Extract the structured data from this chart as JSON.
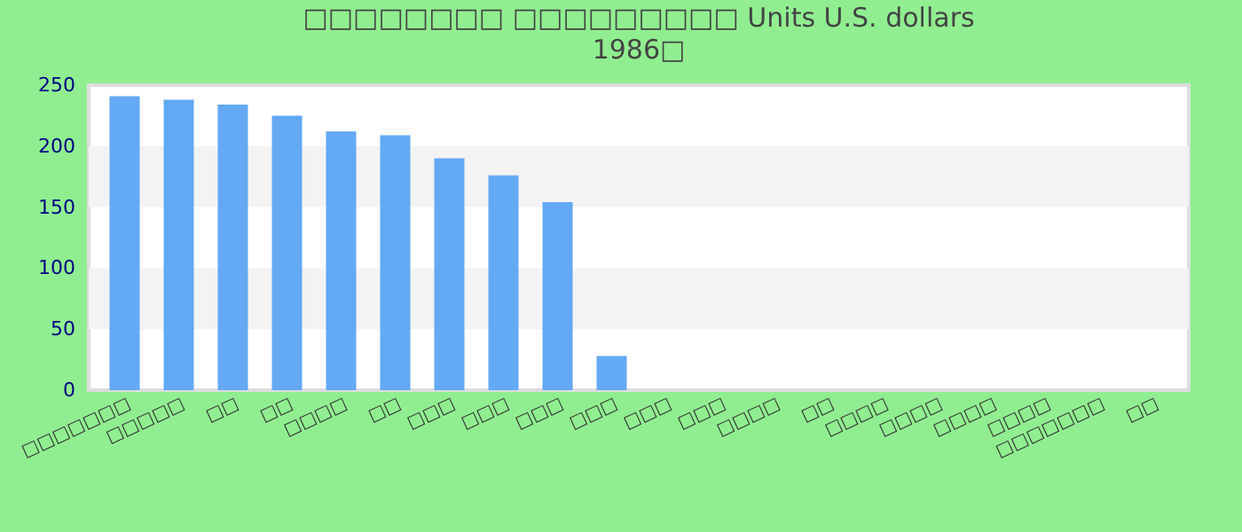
{
  "chart_data": {
    "type": "bar",
    "title": "□□□□□□□□ □□□□□□□□□ Units U.S. dollars",
    "subtitle": "1986□",
    "categories": [
      "□□□□□□□",
      "□□□□□",
      "□□",
      "□□",
      "□□□□",
      "□□",
      "□□□",
      "□□□",
      "□□□",
      "□□□",
      "□□□",
      "□□□",
      "□□□□",
      "□□",
      "□□□□",
      "□□□□",
      "□□□□",
      "□□□□",
      "□□□□□□□",
      "□□"
    ],
    "series": [
      {
        "color": "#63a9f3",
        "values": [
          241,
          238,
          234,
          225,
          212,
          209,
          190,
          176,
          154,
          28,
          0,
          0,
          0,
          0,
          0,
          0,
          0,
          0,
          0,
          0
        ]
      }
    ],
    "ylim": [
      0,
      250
    ],
    "yticks": [
      0,
      50,
      100,
      150,
      200,
      250
    ],
    "bands": [
      {
        "axis": "y",
        "from": 50,
        "to": 100,
        "color": "#f3f3f3"
      },
      {
        "axis": "y",
        "from": 150,
        "to": 200,
        "color": "#f3f3f3"
      }
    ]
  }
}
